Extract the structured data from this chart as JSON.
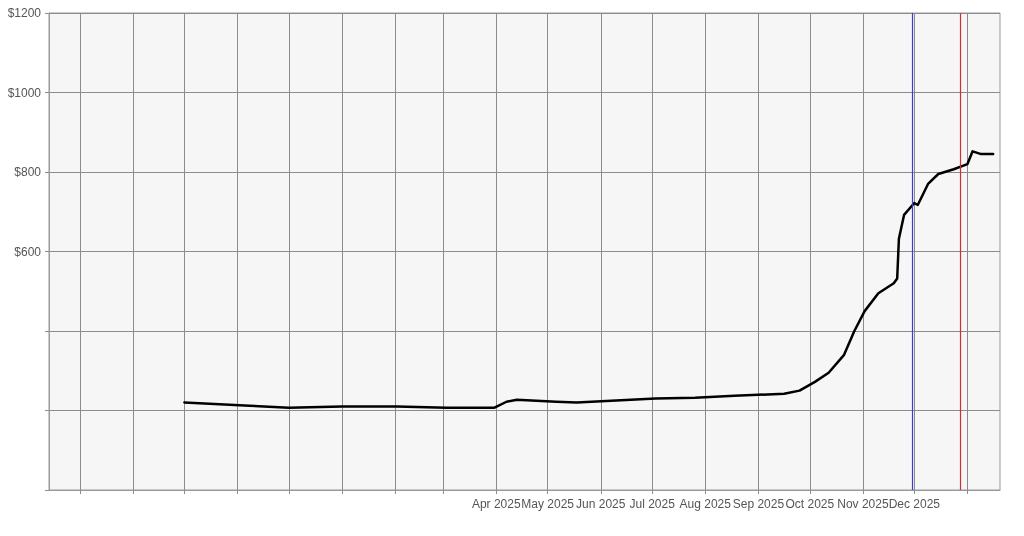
{
  "chart_data": {
    "type": "line",
    "x": [
      "2024-10-01",
      "2024-11-08",
      "2024-12-01",
      "2025-01-01",
      "2025-02-02",
      "2025-03-03",
      "2025-03-31",
      "2025-04-07",
      "2025-04-13",
      "2025-05-06",
      "2025-05-18",
      "2025-06-10",
      "2025-07-03",
      "2025-07-26",
      "2025-08-18",
      "2025-09-16",
      "2025-09-25",
      "2025-10-04",
      "2025-10-12",
      "2025-10-21",
      "2025-10-27",
      "2025-11-02",
      "2025-11-10",
      "2025-11-19",
      "2025-11-21",
      "2025-11-22",
      "2025-11-25",
      "2025-12-01",
      "2025-12-03",
      "2025-12-09",
      "2025-12-15",
      "2025-12-24",
      "2026-01-01",
      "2026-01-04",
      "2026-01-09",
      "2026-01-16"
    ],
    "series": [
      {
        "color": "#000000",
        "values": [
          220,
          212,
          207,
          210,
          210,
          207,
          207,
          222,
          227,
          222,
          220,
          225,
          230,
          232,
          237,
          242,
          250,
          272,
          295,
          340,
          400,
          450,
          495,
          520,
          532,
          632,
          692,
          722,
          717,
          770,
          795,
          807,
          820,
          852,
          845,
          845
        ]
      }
    ],
    "xlim": [
      "2024-07-14",
      "2026-01-20"
    ],
    "xticks": [
      {
        "value": "2024-08-01",
        "label": null
      },
      {
        "value": "2024-09-01",
        "label": null
      },
      {
        "value": "2024-10-01",
        "label": null
      },
      {
        "value": "2024-11-01",
        "label": null
      },
      {
        "value": "2024-12-01",
        "label": null
      },
      {
        "value": "2025-01-01",
        "label": null
      },
      {
        "value": "2025-02-01",
        "label": null
      },
      {
        "value": "2025-03-01",
        "label": null
      },
      {
        "value": "2025-04-01",
        "label": "Apr 2025"
      },
      {
        "value": "2025-05-01",
        "label": "May 2025"
      },
      {
        "value": "2025-06-01",
        "label": "Jun 2025"
      },
      {
        "value": "2025-07-01",
        "label": "Jul 2025"
      },
      {
        "value": "2025-08-01",
        "label": "Aug 2025"
      },
      {
        "value": "2025-09-01",
        "label": "Sep 2025"
      },
      {
        "value": "2025-10-01",
        "label": "Oct 2025"
      },
      {
        "value": "2025-11-01",
        "label": "Nov 2025"
      },
      {
        "value": "2025-12-01",
        "label": "Dec 2025"
      },
      {
        "value": "2026-01-01",
        "label": null
      }
    ],
    "ylim": [
      0,
      1200
    ],
    "yticks": [
      {
        "value": 0,
        "label": null
      },
      {
        "value": 200,
        "label": null
      },
      {
        "value": 400,
        "label": null
      },
      {
        "value": 600,
        "label": "$600"
      },
      {
        "value": 800,
        "label": "$800"
      },
      {
        "value": 1000,
        "label": "$1000"
      },
      {
        "value": 1200,
        "label": "$1200"
      }
    ],
    "ref_lines": [
      {
        "axis": "x",
        "value": "2025-11-30",
        "color": "#3b3bd6"
      },
      {
        "axis": "x",
        "value": "2025-12-28",
        "color": "#d03030"
      }
    ],
    "grid": true,
    "marker": "none",
    "line_style": "solid"
  }
}
